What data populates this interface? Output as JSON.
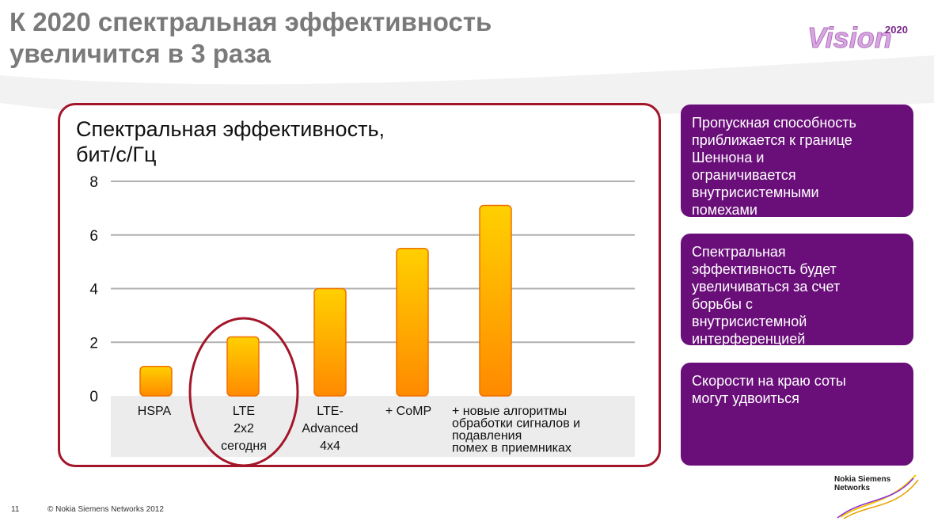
{
  "slide": {
    "title_line1": "К 2020 спектральная эффективность",
    "title_line2": "увеличится в 3 раза",
    "logo_text": "Vision",
    "logo_year": "2020"
  },
  "chart_data": {
    "type": "bar",
    "title": "Спектральная эффективность, бит/с/Гц",
    "categories": [
      [
        "HSPA"
      ],
      [
        "LTE",
        "2x2",
        "сегодня"
      ],
      [
        "LTE-",
        "Advanced",
        "4x4"
      ],
      [
        "+ CoMP"
      ],
      [
        "+ новые алгоритмы",
        "обработки сигналов и",
        "подавления",
        "помех в приемниках"
      ]
    ],
    "values": [
      1.1,
      2.2,
      4.0,
      5.5,
      7.1
    ],
    "ylim": [
      0,
      8
    ],
    "yticks": [
      "0",
      "2",
      "4",
      "6",
      "8"
    ],
    "grid": true,
    "highlighted_category": "LTE 2x2 сегодня",
    "colors": {
      "bar_top": "#ffd000",
      "bar_bottom": "#ff8a00",
      "bar_edge": "#f07000",
      "highlight": "#a3162a"
    }
  },
  "info_boxes": [
    {
      "lines": [
        "Пропускная способность",
        "приближается к границе",
        "Шеннона и",
        "ограничивается",
        "внутрисистемными",
        "помехами"
      ]
    },
    {
      "lines": [
        "Спектральная",
        "эффективность будет",
        "увеличиваться за счет",
        "борьбы с",
        "внутрисистемной",
        "интерференцией"
      ]
    },
    {
      "lines": [
        "Скорости на краю соты",
        "могут удвоиться"
      ]
    }
  ],
  "footer": {
    "page_number": "11",
    "copyright": "© Nokia Siemens Networks 2012",
    "company_line1": "Nokia Siemens",
    "company_line2": "Networks"
  },
  "colors": {
    "frame": "#a3162a",
    "box_bg": "#6a0f7a",
    "title_gray": "#7a7a7a"
  }
}
